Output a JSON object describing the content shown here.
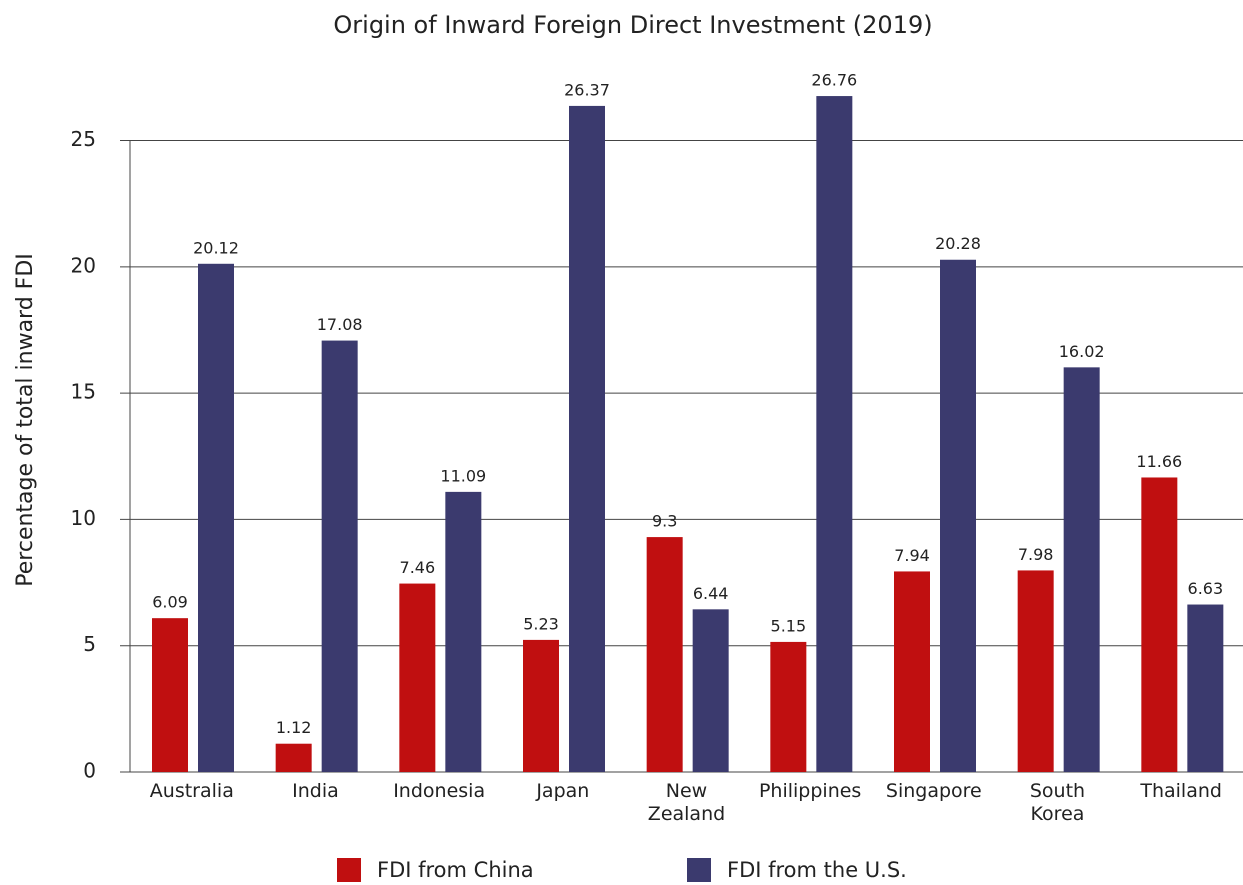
{
  "chart_data": {
    "type": "bar",
    "title": "Origin of Inward Foreign Direct Investment (2019)",
    "y_label": "Percentage of total inward FDI",
    "categories": [
      "Australia",
      "India",
      "Indonesia",
      "Japan",
      "New Zealand",
      "Philippines",
      "Singapore",
      "South Korea",
      "Thailand"
    ],
    "series": [
      {
        "name": "FDI from China",
        "color": "#c00f10",
        "values": [
          6.09,
          1.12,
          7.46,
          5.23,
          9.3,
          5.15,
          7.94,
          7.98,
          11.66
        ]
      },
      {
        "name": "FDI from the U.S.",
        "color": "#3b3a6e",
        "values": [
          20.12,
          17.08,
          11.09,
          26.37,
          6.44,
          26.76,
          20.28,
          16.02,
          6.63
        ]
      }
    ],
    "ylim": [
      0,
      27
    ],
    "yticks": [
      0,
      5,
      10,
      15,
      20,
      25
    ],
    "grid": true,
    "legend": "bottom"
  }
}
